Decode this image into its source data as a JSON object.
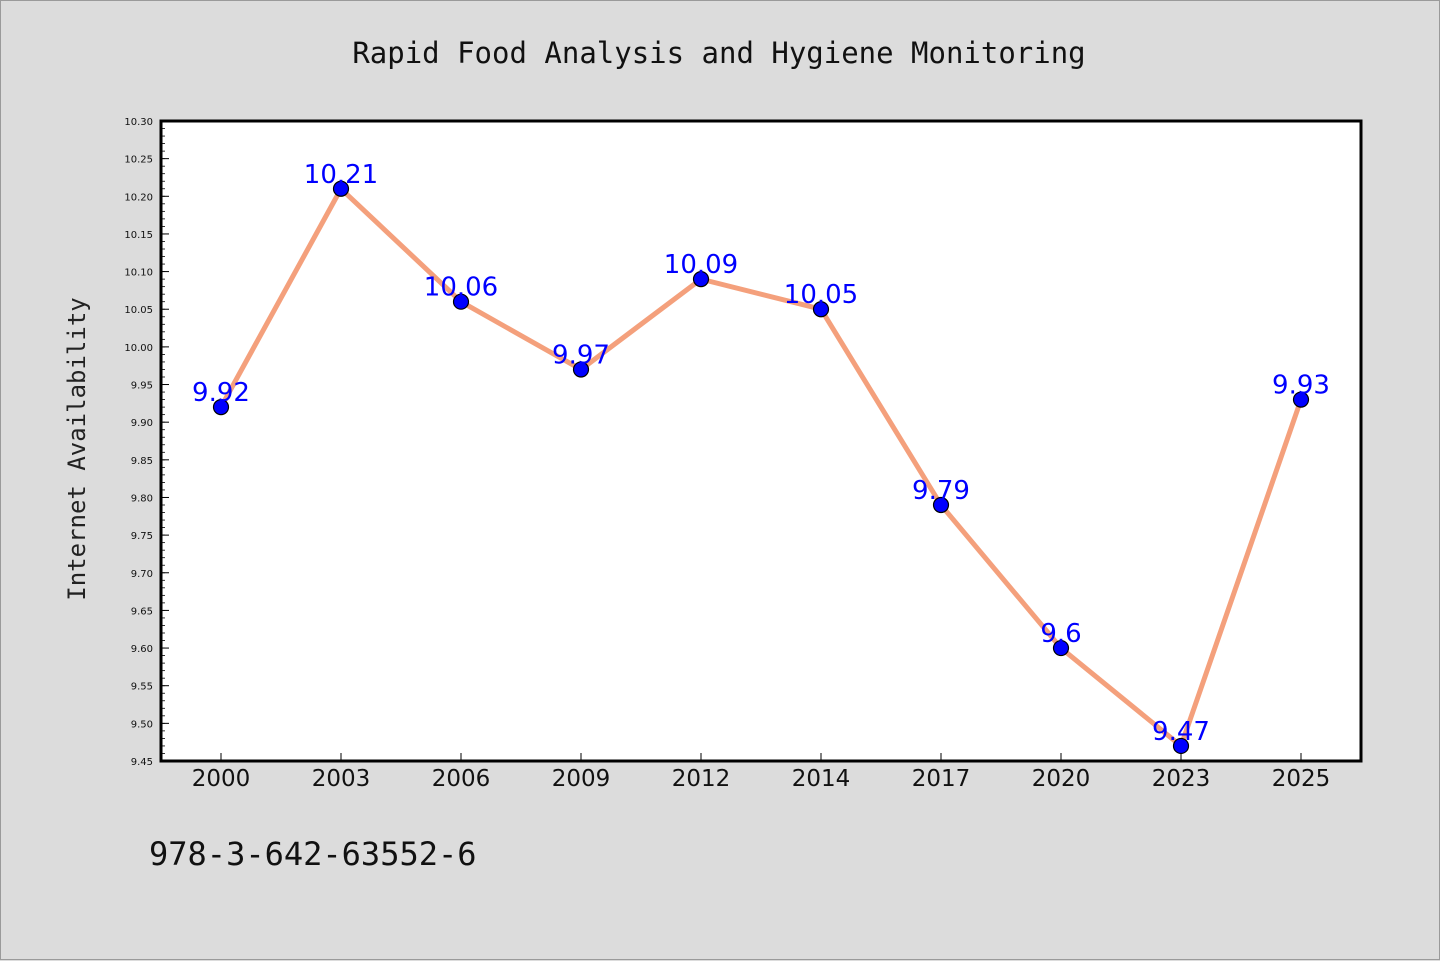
{
  "chart_data": {
    "type": "line",
    "title": "Rapid Food Analysis and Hygiene Monitoring",
    "xlabel": "",
    "ylabel": "Internet Availability",
    "categories": [
      "2000",
      "2003",
      "2006",
      "2009",
      "2012",
      "2014",
      "2017",
      "2020",
      "2023",
      "2025"
    ],
    "series": [
      {
        "values": [
          9.92,
          10.21,
          10.06,
          9.97,
          10.09,
          10.05,
          9.79,
          9.6,
          9.47,
          9.93
        ],
        "data_labels": [
          "9.92",
          "10.21",
          "10.06",
          "9.97",
          "10.09",
          "10.05",
          "9.79",
          "9.6",
          "9.47",
          "9.93"
        ],
        "line_color": "#f4a07c",
        "marker_color": "#0000ff",
        "marker_edge": "#000000"
      }
    ],
    "ylim": [
      9.45,
      10.3
    ],
    "yticks": [
      "9.45",
      "9.50",
      "9.55",
      "9.60",
      "9.65",
      "9.70",
      "9.75",
      "9.80",
      "9.85",
      "9.90",
      "9.95",
      "10.00",
      "10.05",
      "10.10",
      "10.15",
      "10.20",
      "10.25",
      "10.30"
    ],
    "grid": false,
    "legend": "none",
    "background": "#dcdcdc",
    "plot_background": "#ffffff"
  },
  "footer": {
    "isbn": "978-3-642-63552-6"
  }
}
